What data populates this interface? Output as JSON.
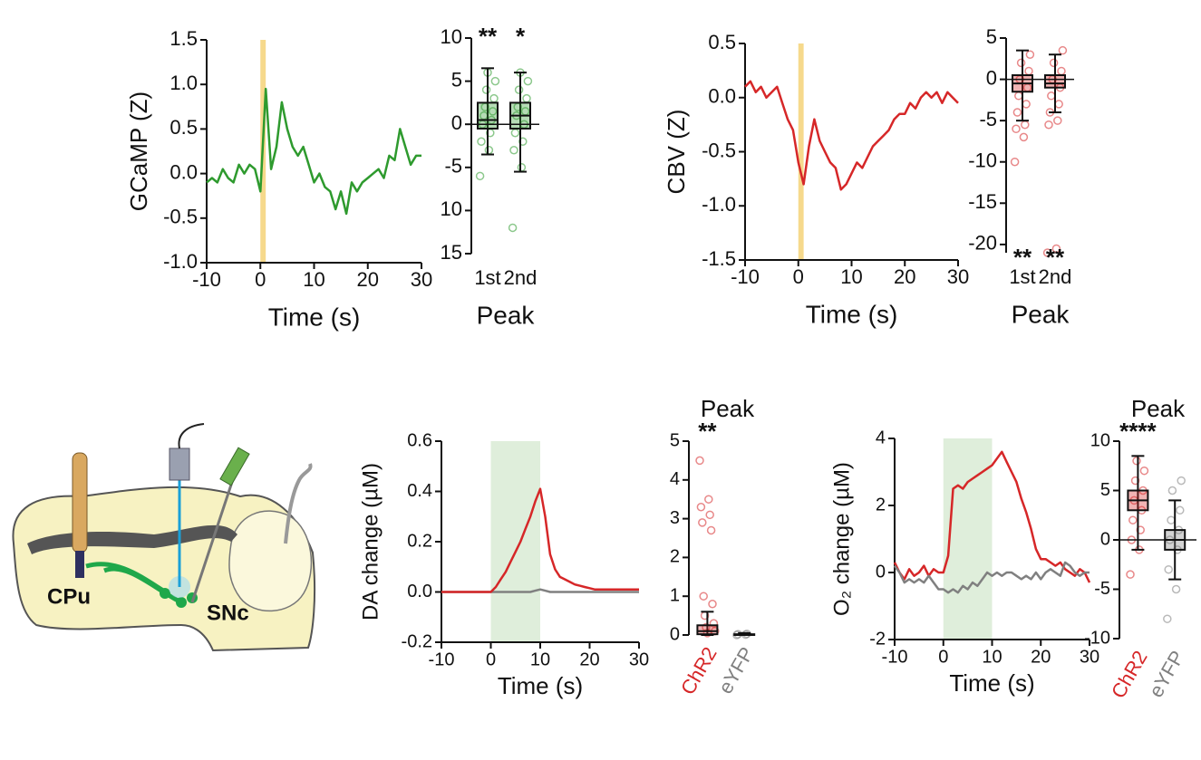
{
  "chart_data": [
    {
      "type": "line",
      "ylabel": "GCaMP (Z)",
      "xlabel": "Time (s)",
      "xlim": [
        -10,
        30
      ],
      "xticks": [
        -10,
        0,
        10,
        20,
        30
      ],
      "ylim": [
        -1.0,
        1.5
      ],
      "yticks": [
        {
          "value": -1.0,
          "label": "-1.0"
        },
        -0.5,
        {
          "value": 0.0,
          "label": "0.0"
        },
        0.5,
        {
          "value": 1.0,
          "label": "1.0"
        },
        1.5
      ],
      "highlight": {
        "x": [
          0,
          1
        ],
        "color": "#f6d98c"
      },
      "x": [
        -10,
        -9,
        -8,
        -7,
        -6,
        -5,
        -4,
        -3,
        -2,
        -1,
        0,
        1,
        2,
        3,
        4,
        5,
        6,
        7,
        8,
        9,
        10,
        11,
        12,
        13,
        14,
        15,
        16,
        17,
        18,
        19,
        20,
        21,
        22,
        23,
        24,
        25,
        26,
        27,
        28,
        29,
        30
      ],
      "series": [
        {
          "color": "#2e9a2e",
          "values": [
            -0.1,
            -0.05,
            -0.1,
            0.05,
            -0.05,
            -0.1,
            0.1,
            0.0,
            0.1,
            0.05,
            -0.2,
            0.95,
            0.05,
            0.3,
            0.8,
            0.5,
            0.3,
            0.2,
            0.3,
            0.1,
            -0.1,
            0.0,
            -0.15,
            -0.2,
            -0.4,
            -0.2,
            -0.45,
            -0.1,
            -0.2,
            -0.1,
            -0.05,
            0.0,
            0.05,
            -0.05,
            0.2,
            0.15,
            0.5,
            0.3,
            0.1,
            0.2,
            0.2
          ]
        }
      ]
    },
    {
      "type": "box",
      "xlabel": "Peak",
      "categories": [
        "1st",
        "2nd"
      ],
      "annotations": [
        "**",
        "*"
      ],
      "ylim": [
        -15,
        10
      ],
      "yticks": [
        10,
        5,
        0,
        -5,
        {
          "value": -10,
          "label": "10"
        },
        {
          "value": -15,
          "label": "15"
        }
      ],
      "boxes": [
        {
          "color": "#2e9a2e",
          "whisker_low": -3.5,
          "q1": -0.5,
          "median": 0.5,
          "q3": 2.5,
          "whisker_high": 6.5,
          "points": [
            -6,
            -3,
            -2,
            -1,
            0,
            0.5,
            1,
            1.5,
            2,
            3,
            4,
            5,
            6
          ]
        },
        {
          "color": "#2e9a2e",
          "whisker_low": -5.5,
          "q1": -0.5,
          "median": 1,
          "q3": 2.5,
          "whisker_high": 6,
          "points": [
            -12,
            -5,
            -3,
            -2,
            -1,
            0,
            1,
            1.5,
            2,
            3,
            4,
            5,
            6
          ]
        }
      ]
    },
    {
      "type": "line",
      "ylabel": "CBV (Z)",
      "xlabel": "Time (s)",
      "xlim": [
        -10,
        30
      ],
      "xticks": [
        -10,
        0,
        10,
        20,
        30
      ],
      "ylim": [
        -1.5,
        0.5
      ],
      "yticks": [
        -1.5,
        {
          "value": -1.0,
          "label": "-1.0"
        },
        -0.5,
        {
          "value": 0.0,
          "label": "0.0"
        },
        0.5
      ],
      "highlight": {
        "x": [
          0,
          1
        ],
        "color": "#f6d98c"
      },
      "x": [
        -10,
        -9,
        -8,
        -7,
        -6,
        -5,
        -4,
        -3,
        -2,
        -1,
        0,
        1,
        2,
        3,
        4,
        5,
        6,
        7,
        8,
        9,
        10,
        11,
        12,
        13,
        14,
        15,
        16,
        17,
        18,
        19,
        20,
        21,
        22,
        23,
        24,
        25,
        26,
        27,
        28,
        29,
        30
      ],
      "series": [
        {
          "color": "#d62728",
          "values": [
            0.1,
            0.15,
            0.05,
            0.1,
            0.0,
            0.05,
            0.1,
            -0.05,
            -0.2,
            -0.3,
            -0.6,
            -0.8,
            -0.45,
            -0.2,
            -0.4,
            -0.5,
            -0.6,
            -0.65,
            -0.85,
            -0.8,
            -0.7,
            -0.6,
            -0.65,
            -0.55,
            -0.45,
            -0.4,
            -0.35,
            -0.3,
            -0.2,
            -0.15,
            -0.15,
            -0.05,
            -0.1,
            0.0,
            0.05,
            0.0,
            0.05,
            -0.05,
            0.05,
            0.0,
            -0.05
          ]
        }
      ]
    },
    {
      "type": "box",
      "xlabel": "Peak",
      "categories": [
        "1st",
        "2nd"
      ],
      "annotations": [
        "**",
        "**"
      ],
      "ylim": [
        -21,
        5
      ],
      "yticks": [
        5,
        0,
        -5,
        -10,
        -15,
        -20
      ],
      "boxes": [
        {
          "color": "#d62728",
          "whisker_low": -5,
          "q1": -1.5,
          "median": -0.5,
          "q3": 0.5,
          "whisker_high": 3.5,
          "points": [
            -10,
            -7,
            -6,
            -5.5,
            -4,
            -3,
            -2,
            -1,
            0,
            1,
            2,
            3
          ]
        },
        {
          "color": "#d62728",
          "whisker_low": -4,
          "q1": -1,
          "median": -0.5,
          "q3": 0.5,
          "whisker_high": 3,
          "points": [
            -21,
            -20.5,
            -5.5,
            -5,
            -4,
            -3,
            -2,
            -1,
            0,
            1,
            2,
            3.5
          ]
        }
      ]
    },
    {
      "type": "line",
      "ylabel": "DA change (µM)",
      "xlabel": "Time (s)",
      "xlim": [
        -10,
        30
      ],
      "xticks": [
        -10,
        0,
        10,
        20,
        30
      ],
      "ylim": [
        -0.2,
        0.6
      ],
      "yticks": [
        -0.2,
        {
          "value": 0.0,
          "label": "0.0"
        },
        0.2,
        0.4,
        0.6
      ],
      "highlight": {
        "x": [
          0,
          10
        ],
        "color": "#dfeedb"
      },
      "x": [
        -10,
        -9,
        -8,
        -7,
        -6,
        -5,
        -4,
        -3,
        -2,
        -1,
        0,
        1,
        2,
        3,
        4,
        5,
        6,
        7,
        8,
        9,
        10,
        11,
        12,
        13,
        14,
        15,
        16,
        17,
        18,
        19,
        20,
        21,
        22,
        23,
        24,
        25,
        26,
        27,
        28,
        29,
        30
      ],
      "series": [
        {
          "color": "#808080",
          "values": [
            0,
            0,
            0,
            0,
            0,
            0,
            0,
            0,
            0,
            0,
            0,
            0,
            0,
            0,
            0,
            0,
            0,
            0,
            0,
            0.005,
            0.01,
            0.005,
            0,
            0,
            0,
            0,
            0,
            0,
            0,
            0,
            0,
            0,
            0,
            0,
            0,
            0,
            0,
            0,
            0,
            0,
            0
          ]
        },
        {
          "color": "#d62728",
          "values": [
            0,
            0,
            0,
            0,
            0,
            0,
            0,
            0,
            0,
            0,
            0,
            0.02,
            0.05,
            0.08,
            0.12,
            0.16,
            0.2,
            0.25,
            0.3,
            0.36,
            0.41,
            0.3,
            0.15,
            0.09,
            0.06,
            0.05,
            0.04,
            0.03,
            0.025,
            0.02,
            0.015,
            0.01,
            0.01,
            0.01,
            0.01,
            0.01,
            0.01,
            0.01,
            0.01,
            0.01,
            0.01
          ]
        }
      ]
    },
    {
      "type": "box",
      "title": "Peak",
      "categories": [
        "ChR2",
        "eYFP"
      ],
      "category_colors": [
        "#d62728",
        "#808080"
      ],
      "annotations": [
        "**",
        null
      ],
      "ylim": [
        0,
        5
      ],
      "yticks": [
        0,
        1,
        2,
        3,
        4,
        5
      ],
      "boxes": [
        {
          "color": "#d62728",
          "whisker_low": 0,
          "q1": 0.02,
          "median": 0.1,
          "q3": 0.25,
          "whisker_high": 0.6,
          "points": [
            4.5,
            3.5,
            3.3,
            3.1,
            2.9,
            2.7,
            1,
            0.8,
            0.5,
            0.3,
            0.2,
            0.1,
            0.05
          ]
        },
        {
          "color": "#808080",
          "whisker_low": 0,
          "q1": 0,
          "median": 0.01,
          "q3": 0.02,
          "whisker_high": 0.05,
          "points": [
            0,
            0.01,
            0.02,
            0.03
          ]
        }
      ]
    },
    {
      "type": "line",
      "ylabel": "O₂ change (µM)",
      "xlabel": "Time (s)",
      "xlim": [
        -10,
        30
      ],
      "xticks": [
        -10,
        0,
        10,
        20,
        30
      ],
      "ylim": [
        -2,
        4
      ],
      "yticks": [
        -2,
        0,
        2,
        4
      ],
      "highlight": {
        "x": [
          0,
          10
        ],
        "color": "#dfeedb"
      },
      "x": [
        -10,
        -9,
        -8,
        -7,
        -6,
        -5,
        -4,
        -3,
        -2,
        -1,
        0,
        1,
        2,
        3,
        4,
        5,
        6,
        7,
        8,
        9,
        10,
        11,
        12,
        13,
        14,
        15,
        16,
        17,
        18,
        19,
        20,
        21,
        22,
        23,
        24,
        25,
        26,
        27,
        28,
        29,
        30
      ],
      "series": [
        {
          "color": "#d62728",
          "values": [
            0.3,
            0,
            -0.2,
            0.1,
            -0.1,
            0,
            0.2,
            -0.1,
            0.1,
            0,
            0,
            0.5,
            2.5,
            2.6,
            2.5,
            2.7,
            2.8,
            2.9,
            3.0,
            3.1,
            3.2,
            3.4,
            3.6,
            3.3,
            3.0,
            2.7,
            2.2,
            1.8,
            1.3,
            0.7,
            0.4,
            0.4,
            0.3,
            0.2,
            0.3,
            0.1,
            0.0,
            -0.1,
            0.1,
            0.0,
            -0.3
          ]
        },
        {
          "color": "#808080",
          "values": [
            0.2,
            0,
            -0.3,
            -0.2,
            -0.3,
            -0.2,
            -0.3,
            -0.1,
            -0.3,
            -0.5,
            -0.5,
            -0.6,
            -0.5,
            -0.6,
            -0.4,
            -0.5,
            -0.3,
            -0.4,
            -0.2,
            0,
            -0.1,
            0,
            -0.1,
            0,
            0,
            -0.1,
            -0.2,
            -0.1,
            -0.2,
            0,
            -0.2,
            0,
            0.1,
            0,
            -0.1,
            0.3,
            0.2,
            0.0,
            -0.1,
            0,
            0
          ]
        }
      ]
    },
    {
      "type": "box",
      "title": "Peak",
      "categories": [
        "ChR2",
        "eYFP"
      ],
      "category_colors": [
        "#d62728",
        "#808080"
      ],
      "annotations": [
        "****",
        null
      ],
      "ylim": [
        -10,
        10
      ],
      "yticks": [
        -10,
        -5,
        0,
        5,
        10
      ],
      "boxes": [
        {
          "color": "#d62728",
          "whisker_low": -1,
          "q1": 3,
          "median": 4,
          "q3": 5,
          "whisker_high": 8.5,
          "points": [
            -3.5,
            -1,
            0,
            1,
            2,
            3,
            4,
            5,
            6,
            7,
            8
          ]
        },
        {
          "color": "#808080",
          "whisker_low": -4,
          "q1": -1,
          "median": 0,
          "q3": 1,
          "whisker_high": 4,
          "points": [
            -8,
            -5,
            -3,
            -1,
            0,
            1,
            2,
            3,
            5,
            6
          ]
        }
      ]
    }
  ],
  "diagram": {
    "labels": [
      "CPu",
      "SNc"
    ]
  }
}
